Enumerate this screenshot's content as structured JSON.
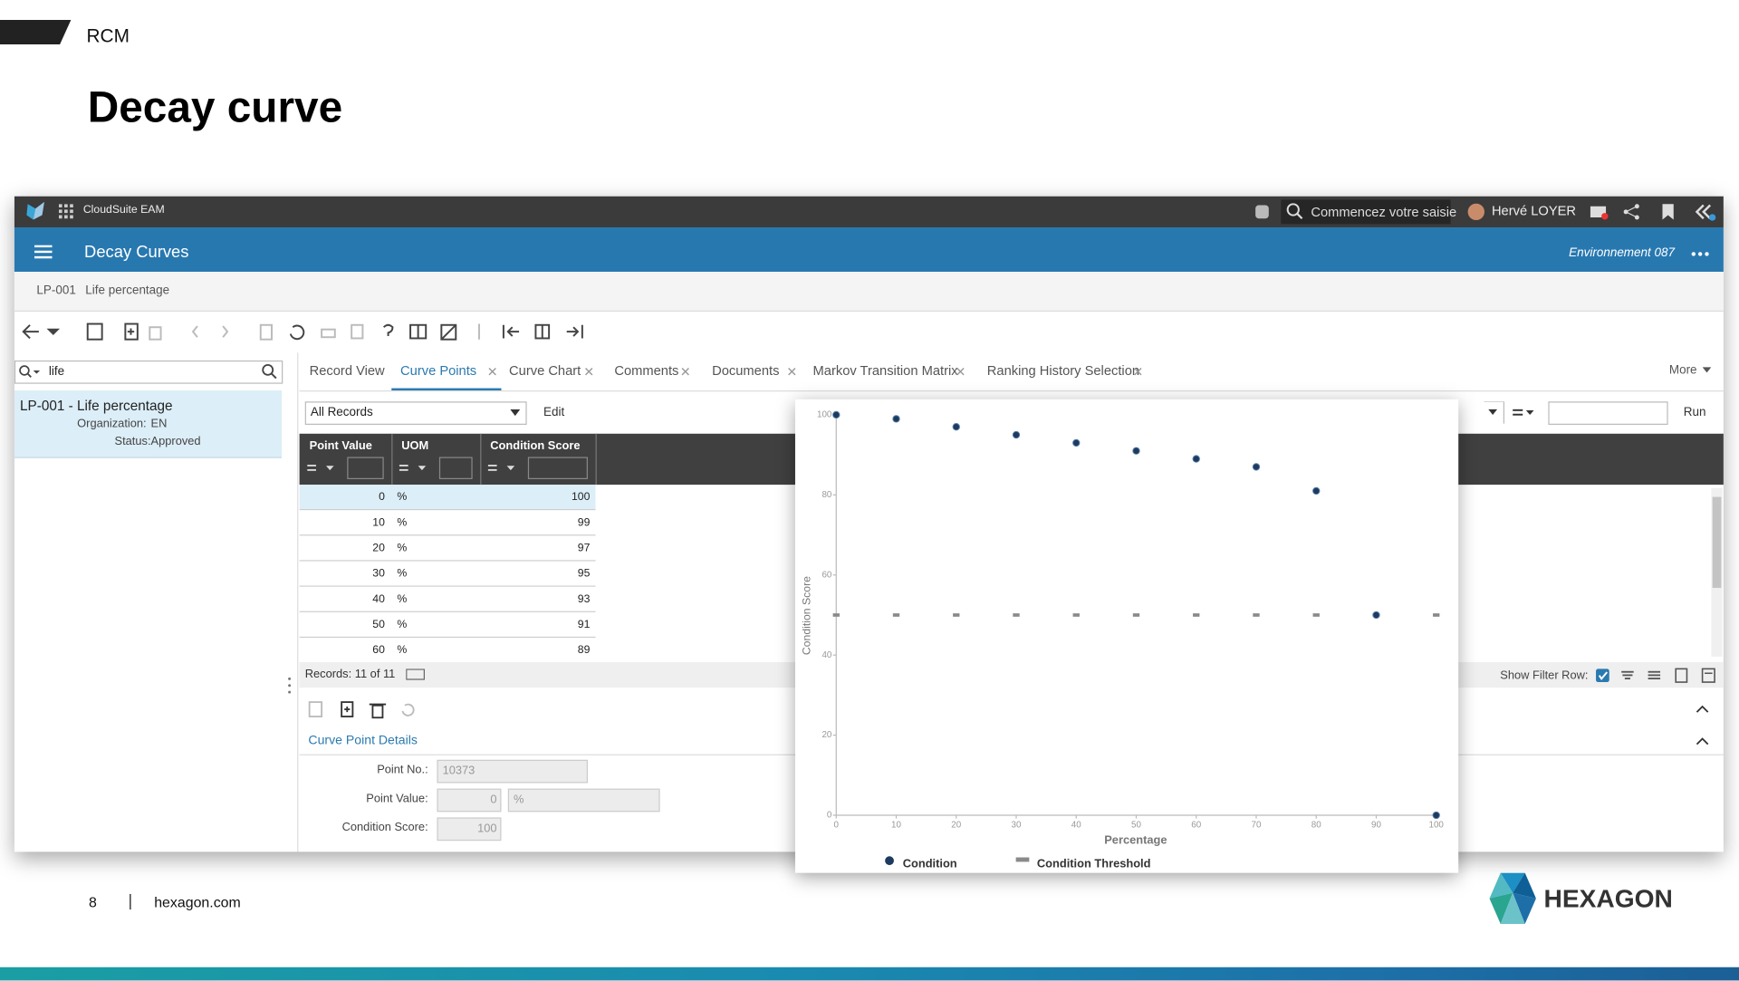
{
  "slide": {
    "section": "RCM",
    "title": "Decay curve",
    "page": 8,
    "site": "hexagon.com",
    "logo": "HEXAGON"
  },
  "app": {
    "product": "CloudSuite EAM",
    "search_placeholder": "Commencez votre saisie",
    "user": "Hervé LOYER",
    "screen": "Decay Curves",
    "environment": "Environnement 087",
    "record_code": "LP-001",
    "record_name": "Life percentage",
    "list_search": "life",
    "list_item": {
      "title": "LP-001 - Life percentage",
      "org_label": "Organization:",
      "org": "EN",
      "status_label": "Status:",
      "status": "Approved"
    },
    "tabs": [
      "Record View",
      "Curve Points",
      "Curve Chart",
      "Comments",
      "Documents",
      "Markov Transition Matrix",
      "Ranking History Selection"
    ],
    "more": "More",
    "filter": "All Records",
    "edit": "Edit",
    "run": "Run",
    "table": {
      "headers": [
        "Point Value",
        "UOM",
        "Condition Score"
      ],
      "rows": [
        [
          0,
          "%",
          100
        ],
        [
          10,
          "%",
          99
        ],
        [
          20,
          "%",
          97
        ],
        [
          30,
          "%",
          95
        ],
        [
          40,
          "%",
          93
        ],
        [
          50,
          "%",
          91
        ],
        [
          60,
          "%",
          89
        ]
      ]
    },
    "records": "Records: 11 of 11",
    "show_filter_row": "Show Filter Row:",
    "details_title": "Curve Point Details",
    "form": {
      "point_no_label": "Point No.:",
      "point_no": 10373,
      "point_value_label": "Point Value:",
      "point_value": 0,
      "uom": "%",
      "condition_score_label": "Condition Score:",
      "condition_score": 100
    }
  },
  "chart_data": {
    "type": "scatter",
    "x_label": "Percentage",
    "y_label": "Condition Score",
    "xlim": [
      0,
      100
    ],
    "ylim": [
      0,
      100
    ],
    "xticks": [
      0,
      10,
      20,
      30,
      40,
      50,
      60,
      70,
      80,
      90,
      100
    ],
    "yticks": [
      0,
      20,
      40,
      60,
      80,
      100
    ],
    "legend": "bottom",
    "series": [
      {
        "name": "Condition",
        "color": "#1d3a5f",
        "x": [
          0,
          10,
          20,
          30,
          40,
          50,
          60,
          70,
          80,
          90,
          100
        ],
        "values": [
          100,
          99,
          97,
          95,
          93,
          91,
          89,
          87,
          81,
          50,
          0
        ]
      },
      {
        "name": "Condition Threshold",
        "color": "#8a8a8a",
        "x": [
          0,
          10,
          20,
          30,
          40,
          50,
          60,
          70,
          80,
          90,
          100
        ],
        "values": [
          50,
          50,
          50,
          50,
          50,
          50,
          50,
          50,
          50,
          50,
          50
        ]
      }
    ]
  }
}
